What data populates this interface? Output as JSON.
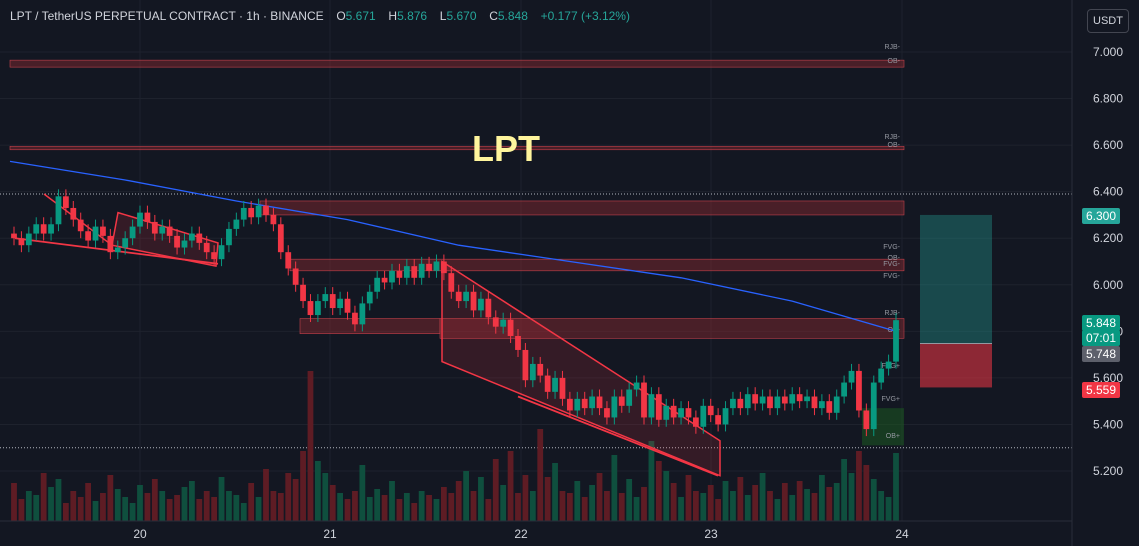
{
  "header": {
    "symbol": "LPT / TetherUS PERPETUAL CONTRACT · 1h · BINANCE",
    "o_label": "O",
    "o_value": "5.671",
    "h_label": "H",
    "h_value": "5.876",
    "l_label": "L",
    "l_value": "5.670",
    "c_label": "C",
    "c_value": "5.848",
    "change": "+0.177 (+3.12%)"
  },
  "currency_button": "USDT",
  "overlay_title": "LPT",
  "price_tags": {
    "target": "6.300",
    "last": "5.848",
    "countdown": "07:01",
    "entry": "5.748",
    "stop": "5.559"
  },
  "colors": {
    "background": "#131722",
    "up": "#26a69a",
    "candle_up": "#089981",
    "candle_down": "#f23645",
    "ma_line": "#2962ff",
    "zone": "#8b2b30",
    "title": "#fff59d"
  },
  "chart_data": {
    "type": "candlestick",
    "symbol": "LPT / TetherUS PERPETUAL CONTRACT",
    "interval": "1h",
    "exchange": "BINANCE",
    "x_ticks": [
      "20",
      "21",
      "22",
      "23",
      "24"
    ],
    "y_ticks": [
      "7.000",
      "6.800",
      "6.600",
      "6.400",
      "6.200",
      "6.000",
      "5.800",
      "5.600",
      "5.400",
      "5.200"
    ],
    "ylim": [
      5.1,
      7.07
    ],
    "last_ohlc": {
      "open": 5.671,
      "high": 5.876,
      "low": 5.67,
      "close": 5.848
    },
    "change": 0.177,
    "change_pct": 3.12,
    "candles": [
      {
        "o": 6.22,
        "c": 6.2
      },
      {
        "o": 6.2,
        "c": 6.17
      },
      {
        "o": 6.17,
        "c": 6.22
      },
      {
        "o": 6.22,
        "c": 6.26
      },
      {
        "o": 6.26,
        "c": 6.22
      },
      {
        "o": 6.22,
        "c": 6.26
      },
      {
        "o": 6.26,
        "c": 6.38
      },
      {
        "o": 6.38,
        "c": 6.33
      },
      {
        "o": 6.33,
        "c": 6.28
      },
      {
        "o": 6.28,
        "c": 6.23
      },
      {
        "o": 6.23,
        "c": 6.19
      },
      {
        "o": 6.19,
        "c": 6.25
      },
      {
        "o": 6.25,
        "c": 6.21
      },
      {
        "o": 6.21,
        "c": 6.14
      },
      {
        "o": 6.14,
        "c": 6.16
      },
      {
        "o": 6.16,
        "c": 6.2
      },
      {
        "o": 6.2,
        "c": 6.25
      },
      {
        "o": 6.25,
        "c": 6.31
      },
      {
        "o": 6.31,
        "c": 6.27
      },
      {
        "o": 6.27,
        "c": 6.22
      },
      {
        "o": 6.22,
        "c": 6.25
      },
      {
        "o": 6.25,
        "c": 6.21
      },
      {
        "o": 6.21,
        "c": 6.16
      },
      {
        "o": 6.16,
        "c": 6.19
      },
      {
        "o": 6.19,
        "c": 6.22
      },
      {
        "o": 6.22,
        "c": 6.18
      },
      {
        "o": 6.18,
        "c": 6.14
      },
      {
        "o": 6.14,
        "c": 6.11
      },
      {
        "o": 6.11,
        "c": 6.17
      },
      {
        "o": 6.17,
        "c": 6.24
      },
      {
        "o": 6.24,
        "c": 6.28
      },
      {
        "o": 6.28,
        "c": 6.33
      },
      {
        "o": 6.33,
        "c": 6.29
      },
      {
        "o": 6.29,
        "c": 6.34
      },
      {
        "o": 6.34,
        "c": 6.3
      },
      {
        "o": 6.3,
        "c": 6.26
      },
      {
        "o": 6.26,
        "c": 6.14
      },
      {
        "o": 6.14,
        "c": 6.07
      },
      {
        "o": 6.07,
        "c": 6.0
      },
      {
        "o": 6.0,
        "c": 5.93
      },
      {
        "o": 5.93,
        "c": 5.87
      },
      {
        "o": 5.87,
        "c": 5.93
      },
      {
        "o": 5.93,
        "c": 5.96
      },
      {
        "o": 5.96,
        "c": 5.9
      },
      {
        "o": 5.9,
        "c": 5.94
      },
      {
        "o": 5.94,
        "c": 5.88
      },
      {
        "o": 5.88,
        "c": 5.83
      },
      {
        "o": 5.83,
        "c": 5.92
      },
      {
        "o": 5.92,
        "c": 5.97
      },
      {
        "o": 5.97,
        "c": 6.03
      },
      {
        "o": 6.03,
        "c": 6.01
      },
      {
        "o": 6.01,
        "c": 6.06
      },
      {
        "o": 6.06,
        "c": 6.03
      },
      {
        "o": 6.03,
        "c": 6.08
      },
      {
        "o": 6.08,
        "c": 6.03
      },
      {
        "o": 6.03,
        "c": 6.09
      },
      {
        "o": 6.09,
        "c": 6.06
      },
      {
        "o": 6.06,
        "c": 6.1
      },
      {
        "o": 6.1,
        "c": 6.05
      },
      {
        "o": 6.05,
        "c": 5.97
      },
      {
        "o": 5.97,
        "c": 5.93
      },
      {
        "o": 5.93,
        "c": 5.97
      },
      {
        "o": 5.97,
        "c": 5.89
      },
      {
        "o": 5.89,
        "c": 5.94
      },
      {
        "o": 5.94,
        "c": 5.86
      },
      {
        "o": 5.86,
        "c": 5.82
      },
      {
        "o": 5.82,
        "c": 5.85
      },
      {
        "o": 5.85,
        "c": 5.78
      },
      {
        "o": 5.78,
        "c": 5.72
      },
      {
        "o": 5.72,
        "c": 5.59
      },
      {
        "o": 5.59,
        "c": 5.66
      },
      {
        "o": 5.66,
        "c": 5.61
      },
      {
        "o": 5.61,
        "c": 5.54
      },
      {
        "o": 5.54,
        "c": 5.6
      },
      {
        "o": 5.6,
        "c": 5.51
      },
      {
        "o": 5.51,
        "c": 5.46
      },
      {
        "o": 5.46,
        "c": 5.51
      },
      {
        "o": 5.51,
        "c": 5.47
      },
      {
        "o": 5.47,
        "c": 5.52
      },
      {
        "o": 5.52,
        "c": 5.47
      },
      {
        "o": 5.47,
        "c": 5.43
      },
      {
        "o": 5.43,
        "c": 5.52
      },
      {
        "o": 5.52,
        "c": 5.48
      },
      {
        "o": 5.48,
        "c": 5.55
      },
      {
        "o": 5.55,
        "c": 5.58
      },
      {
        "o": 5.58,
        "c": 5.43
      },
      {
        "o": 5.43,
        "c": 5.53
      },
      {
        "o": 5.53,
        "c": 5.42
      },
      {
        "o": 5.42,
        "c": 5.48
      },
      {
        "o": 5.48,
        "c": 5.43
      },
      {
        "o": 5.43,
        "c": 5.47
      },
      {
        "o": 5.47,
        "c": 5.43
      },
      {
        "o": 5.43,
        "c": 5.39
      },
      {
        "o": 5.39,
        "c": 5.48
      },
      {
        "o": 5.48,
        "c": 5.44
      },
      {
        "o": 5.44,
        "c": 5.4
      },
      {
        "o": 5.4,
        "c": 5.47
      },
      {
        "o": 5.47,
        "c": 5.51
      },
      {
        "o": 5.51,
        "c": 5.47
      },
      {
        "o": 5.47,
        "c": 5.53
      },
      {
        "o": 5.53,
        "c": 5.49
      },
      {
        "o": 5.49,
        "c": 5.52
      },
      {
        "o": 5.52,
        "c": 5.47
      },
      {
        "o": 5.47,
        "c": 5.52
      },
      {
        "o": 5.52,
        "c": 5.49
      },
      {
        "o": 5.49,
        "c": 5.53
      },
      {
        "o": 5.53,
        "c": 5.5
      },
      {
        "o": 5.5,
        "c": 5.52
      },
      {
        "o": 5.52,
        "c": 5.47
      },
      {
        "o": 5.47,
        "c": 5.5
      },
      {
        "o": 5.5,
        "c": 5.45
      },
      {
        "o": 5.45,
        "c": 5.52
      },
      {
        "o": 5.52,
        "c": 5.58
      },
      {
        "o": 5.58,
        "c": 5.63
      },
      {
        "o": 5.63,
        "c": 5.46
      },
      {
        "o": 5.46,
        "c": 5.38
      },
      {
        "o": 5.38,
        "c": 5.58
      },
      {
        "o": 5.58,
        "c": 5.64
      },
      {
        "o": 5.64,
        "c": 5.67
      },
      {
        "o": 5.67,
        "c": 5.848
      }
    ],
    "moving_average": [
      {
        "i": 0,
        "v": 6.53
      },
      {
        "i": 15,
        "v": 6.45
      },
      {
        "i": 30,
        "v": 6.36
      },
      {
        "i": 45,
        "v": 6.28
      },
      {
        "i": 60,
        "v": 6.17
      },
      {
        "i": 75,
        "v": 6.1
      },
      {
        "i": 90,
        "v": 6.03
      },
      {
        "i": 105,
        "v": 5.93
      },
      {
        "i": 119,
        "v": 5.8
      }
    ],
    "zone_labels": [
      "RJB-",
      "OB-",
      "RJB-",
      "OB-",
      "FVG-",
      "OB-",
      "FVG-",
      "FVG-",
      "RJB-",
      "OB-",
      "FVG+",
      "OB+",
      "FVG+",
      "OB+",
      "RJB-",
      "FVG+"
    ],
    "position": {
      "entry": 5.748,
      "target": 6.3,
      "stop": 5.559
    }
  }
}
